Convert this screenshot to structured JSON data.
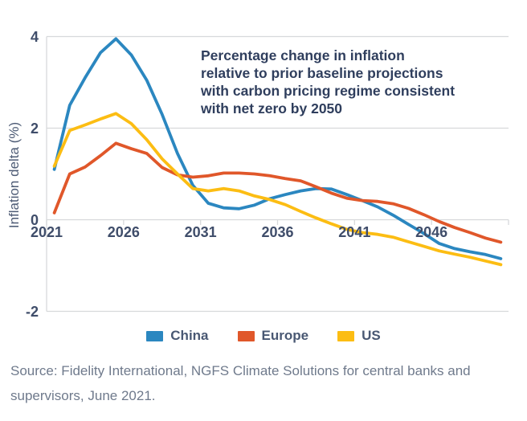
{
  "chart_data": {
    "type": "line",
    "note_lines": [
      "Percentage change in inflation",
      "relative to prior baseline projections",
      "with carbon pricing regime consistent",
      "with net zero by 2050"
    ],
    "ylabel": "Inflation delta (%)",
    "years": [
      2021,
      2022,
      2023,
      2024,
      2025,
      2026,
      2027,
      2028,
      2029,
      2030,
      2031,
      2032,
      2033,
      2034,
      2035,
      2036,
      2037,
      2038,
      2039,
      2040,
      2041,
      2042,
      2043,
      2044,
      2045,
      2046,
      2047,
      2048,
      2049,
      2050
    ],
    "x_tick_labels": [
      "2021",
      "2026",
      "2031",
      "2036",
      "2041",
      "2046"
    ],
    "y_ticks": [
      4,
      2,
      0,
      -2
    ],
    "ylim": [
      -2,
      4
    ],
    "xlim_years": [
      2021,
      2051
    ],
    "grid": "horizontal",
    "legend_position": "bottom",
    "series": [
      {
        "name": "China",
        "color": "#2b87c0",
        "values": [
          1.1,
          2.5,
          3.1,
          3.65,
          3.95,
          3.6,
          3.05,
          2.3,
          1.45,
          0.75,
          0.36,
          0.26,
          0.24,
          0.32,
          0.46,
          0.55,
          0.63,
          0.68,
          0.67,
          0.55,
          0.42,
          0.28,
          0.1,
          -0.1,
          -0.3,
          -0.52,
          -0.63,
          -0.7,
          -0.76,
          -0.85
        ]
      },
      {
        "name": "Europe",
        "color": "#e0572a",
        "values": [
          0.15,
          1.0,
          1.15,
          1.4,
          1.67,
          1.55,
          1.45,
          1.14,
          0.98,
          0.93,
          0.96,
          1.02,
          1.02,
          1.0,
          0.96,
          0.9,
          0.85,
          0.72,
          0.58,
          0.47,
          0.42,
          0.4,
          0.35,
          0.25,
          0.11,
          -0.04,
          -0.17,
          -0.28,
          -0.4,
          -0.49
        ]
      },
      {
        "name": "US",
        "color": "#fcbd13",
        "values": [
          1.17,
          1.95,
          2.07,
          2.2,
          2.32,
          2.1,
          1.75,
          1.33,
          1.0,
          0.68,
          0.63,
          0.68,
          0.63,
          0.52,
          0.44,
          0.33,
          0.18,
          0.04,
          -0.09,
          -0.21,
          -0.28,
          -0.32,
          -0.38,
          -0.48,
          -0.58,
          -0.68,
          -0.75,
          -0.82,
          -0.9,
          -0.98
        ]
      }
    ]
  },
  "source": {
    "lines": [
      "Source: Fidelity International, NGFS Climate Solutions for central banks and",
      "supervisors, June 2021."
    ]
  },
  "colors": {
    "grid": "#d7d9db",
    "axis": "#d7d9db",
    "note_text": "#2f3e5d",
    "tick_text": "#3f4d6a",
    "legend_text": "#495873",
    "source_text": "#6f7a8c",
    "background": "#ffffff"
  }
}
